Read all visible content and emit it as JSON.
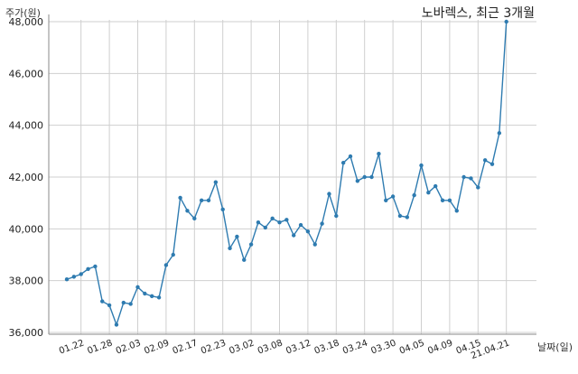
{
  "chart_data": {
    "type": "line",
    "title": "노바렉스, 최근 3개월",
    "ylabel": "주가(원)",
    "xlabel": "날짜(일)",
    "ylim": [
      36000,
      48000
    ],
    "yticks": [
      36000,
      38000,
      40000,
      42000,
      44000,
      46000,
      48000
    ],
    "ytick_labels": [
      "36,000",
      "38,000",
      "40,000",
      "42,000",
      "44,000",
      "46,000",
      "48,000"
    ],
    "xtick_labels": [
      "01.22",
      "01.28",
      "02.03",
      "02.09",
      "02.17",
      "02.23",
      "03.02",
      "03.08",
      "03.12",
      "03.18",
      "03.24",
      "03.30",
      "04.05",
      "04.09",
      "04.15",
      "21.04.21"
    ],
    "xtick_index": [
      3,
      7,
      11,
      15,
      19,
      23,
      27,
      31,
      35,
      39,
      43,
      47,
      51,
      55,
      59,
      63
    ],
    "grid": true,
    "series_color": "#2e7bb0",
    "series": [
      {
        "values": [
          38050,
          38150,
          38250,
          38450,
          38550,
          37200,
          37050,
          36300,
          37150,
          37100,
          37750,
          37500,
          37400,
          37350,
          38600,
          39000,
          41200,
          40700,
          40400,
          41100,
          41100,
          41800,
          40750,
          39250,
          39700,
          38800,
          39400,
          40250,
          40050,
          40400,
          40250,
          40350,
          39750,
          40150,
          39900,
          39400,
          40200,
          41350,
          40500,
          42550,
          42800,
          41850,
          42000,
          42000,
          42900,
          41100,
          41250,
          40500,
          40450,
          41300,
          42450,
          41400,
          41650,
          41100,
          41100,
          40700,
          42000,
          41950,
          41600,
          42650,
          42500,
          43700,
          48000
        ]
      }
    ]
  }
}
